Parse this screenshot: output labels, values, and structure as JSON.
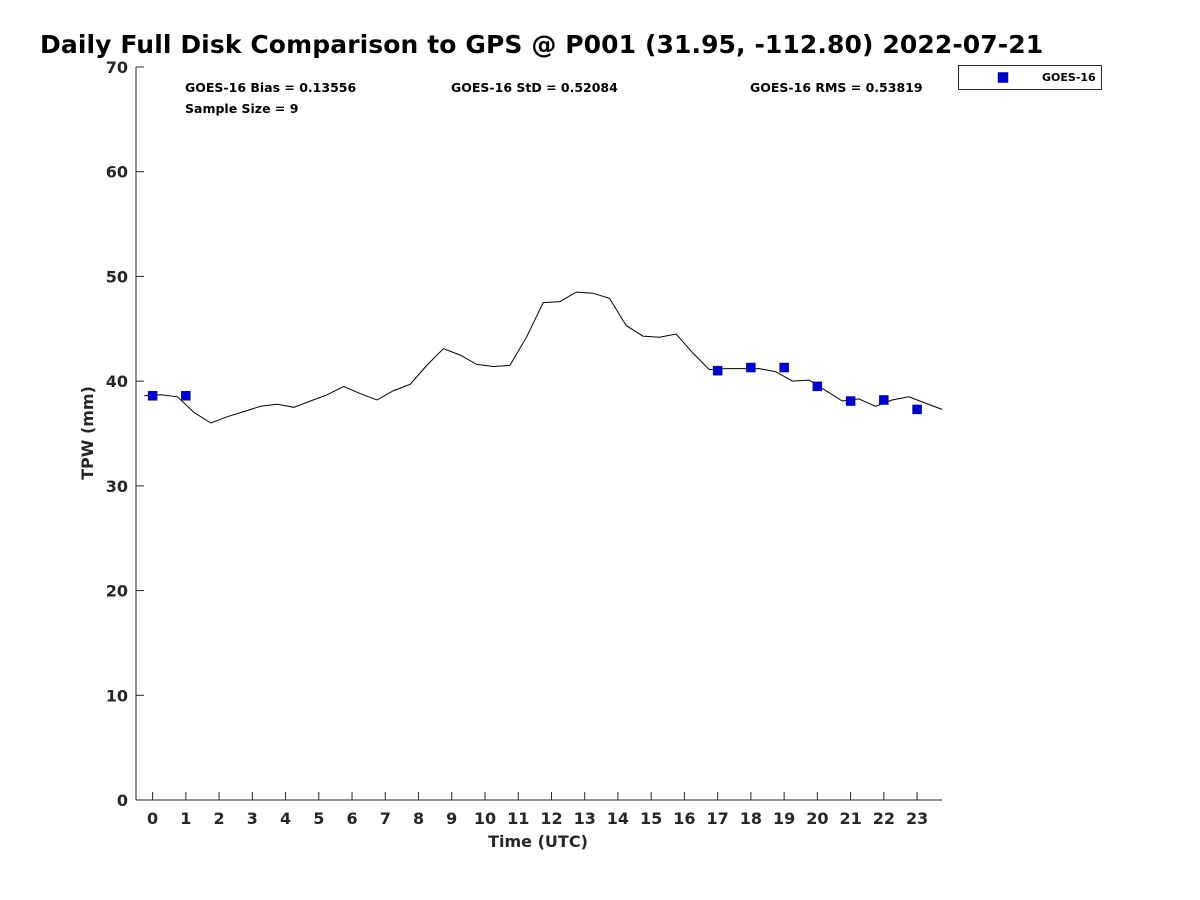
{
  "chart_data": {
    "type": "scatter",
    "title": "Daily Full Disk Comparison to GPS @ P001 (31.95, -112.80) 2022-07-21",
    "xlabel": "Time (UTC)",
    "ylabel": "TPW (mm)",
    "xlim": [
      -0.5,
      23.75
    ],
    "ylim": [
      0,
      70
    ],
    "x_ticks": [
      "0",
      "1",
      "2",
      "3",
      "4",
      "5",
      "6",
      "7",
      "8",
      "9",
      "10",
      "11",
      "12",
      "13",
      "14",
      "15",
      "16",
      "17",
      "18",
      "19",
      "20",
      "21",
      "22",
      "23"
    ],
    "y_ticks": [
      "0",
      "10",
      "20",
      "30",
      "40",
      "50",
      "60",
      "70"
    ],
    "grid": false,
    "legend_position": "outside-top-right",
    "stats": {
      "bias": "GOES-16 Bias = 0.13556",
      "std": "GOES-16 StD = 0.52084",
      "rms": "GOES-16 RMS = 0.53819",
      "sample": "Sample Size = 9"
    },
    "series": [
      {
        "type": "line",
        "color": "#000000",
        "x": [
          -0.25,
          0.25,
          0.75,
          1.25,
          1.75,
          2.25,
          2.75,
          3.25,
          3.75,
          4.25,
          4.75,
          5.25,
          5.75,
          6.25,
          6.75,
          7.25,
          7.75,
          8.25,
          8.75,
          9.25,
          9.75,
          10.25,
          10.75,
          11.25,
          11.75,
          12.25,
          12.75,
          13.25,
          13.75,
          14.25,
          14.75,
          15.25,
          15.75,
          16.25,
          16.75,
          17.25,
          17.75,
          18.25,
          18.75,
          19.25,
          19.75,
          20.25,
          20.75,
          21.25,
          21.75,
          22.25,
          22.75,
          23.25,
          23.75
        ],
        "y": [
          38.6,
          38.7,
          38.5,
          37.0,
          36.0,
          36.6,
          37.1,
          37.6,
          37.8,
          37.5,
          38.1,
          38.7,
          39.5,
          38.8,
          38.2,
          39.1,
          39.7,
          41.5,
          43.1,
          42.5,
          41.6,
          41.4,
          41.5,
          44.2,
          47.5,
          47.6,
          48.5,
          48.4,
          47.9,
          45.3,
          44.3,
          44.2,
          44.5,
          42.7,
          41.1,
          41.2,
          41.2,
          41.2,
          40.9,
          40.0,
          40.1,
          39.1,
          38.1,
          38.3,
          37.6,
          38.2,
          38.5,
          37.9,
          37.3
        ]
      },
      {
        "name": "GOES-16",
        "type": "scatter",
        "marker": "square",
        "color": "#0000cc",
        "x": [
          0,
          1,
          17,
          18,
          19,
          20,
          21,
          22,
          23
        ],
        "y": [
          38.6,
          38.6,
          41.0,
          41.3,
          41.3,
          39.5,
          38.1,
          38.2,
          37.3
        ]
      }
    ]
  }
}
